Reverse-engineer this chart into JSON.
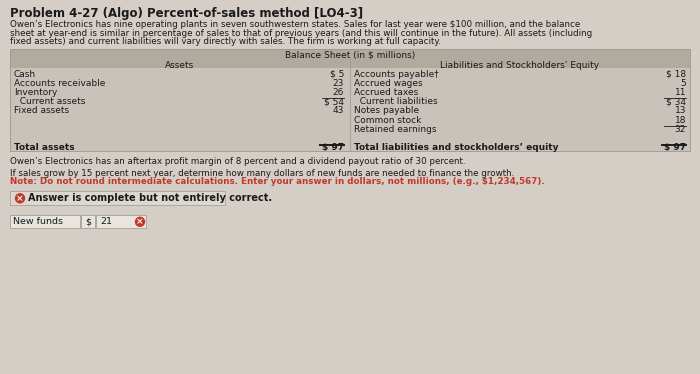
{
  "title": "Problem 4-27 (Algo) Percent-of-sales method [LO4-3]",
  "bg_color": "#d4cec6",
  "paragraph1_line1": "Owen’s Electronics has nine operating plants in seven southwestern states. Sales for last year were $100 million, and the balance",
  "paragraph1_line2": "sheet at year-end is similar in percentage of sales to that of previous years (and this will continue in the future). All assets (including",
  "paragraph1_line3": "fixed assets) and current liabilities will vary directly with sales. The firm is working at full capacity.",
  "table_header": "Balance Sheet (in $ millions)",
  "col_header_left": "Assets",
  "col_header_right": "Liabilities and Stockholders’ Equity",
  "assets": [
    [
      "Cash",
      "$ 5"
    ],
    [
      "Accounts receivable",
      "23"
    ],
    [
      "Inventory",
      "26"
    ],
    [
      "  Current assets",
      "$ 54"
    ],
    [
      "Fixed assets",
      "43"
    ],
    [
      "",
      ""
    ],
    [
      "",
      ""
    ],
    [
      "",
      ""
    ],
    [
      "Total assets",
      "$ 97"
    ]
  ],
  "liabilities": [
    [
      "Accounts payable†",
      "$ 18"
    ],
    [
      "Accrued wages",
      "5"
    ],
    [
      "Accrued taxes",
      "11"
    ],
    [
      "  Current liabilities",
      "$ 34"
    ],
    [
      "Notes payable",
      "13"
    ],
    [
      "Common stock",
      "18"
    ],
    [
      "Retained earnings",
      "32"
    ],
    [
      "",
      ""
    ],
    [
      "Total liabilities and stockholders’ equity",
      "$ 97"
    ]
  ],
  "paragraph2": "Owen’s Electronics has an aftertax profit margin of 8 percent and a dividend payout ratio of 30 percent.",
  "paragraph3": "If sales grow by 15 percent next year, determine how many dollars of new funds are needed to finance the growth.",
  "note_text": "Note: Do not round intermediate calculations. Enter your answer in dollars, not millions, (e.g., $1,234,567).",
  "answer_box_text": "Answer is complete but not entirely correct.",
  "field_label": "New funds",
  "field_dollar": "$",
  "field_value": "21",
  "text_color": "#1a1a1a",
  "table_header_bg": "#b0aa9f",
  "table_body_bg": "#c8c2ba",
  "answer_box_bg": "#ddd8cf",
  "input_box_bg": "#e8e4de",
  "note_color": "#c0392b",
  "title_fontsize": 8.5,
  "body_fontsize": 6.8,
  "table_fontsize": 6.5
}
